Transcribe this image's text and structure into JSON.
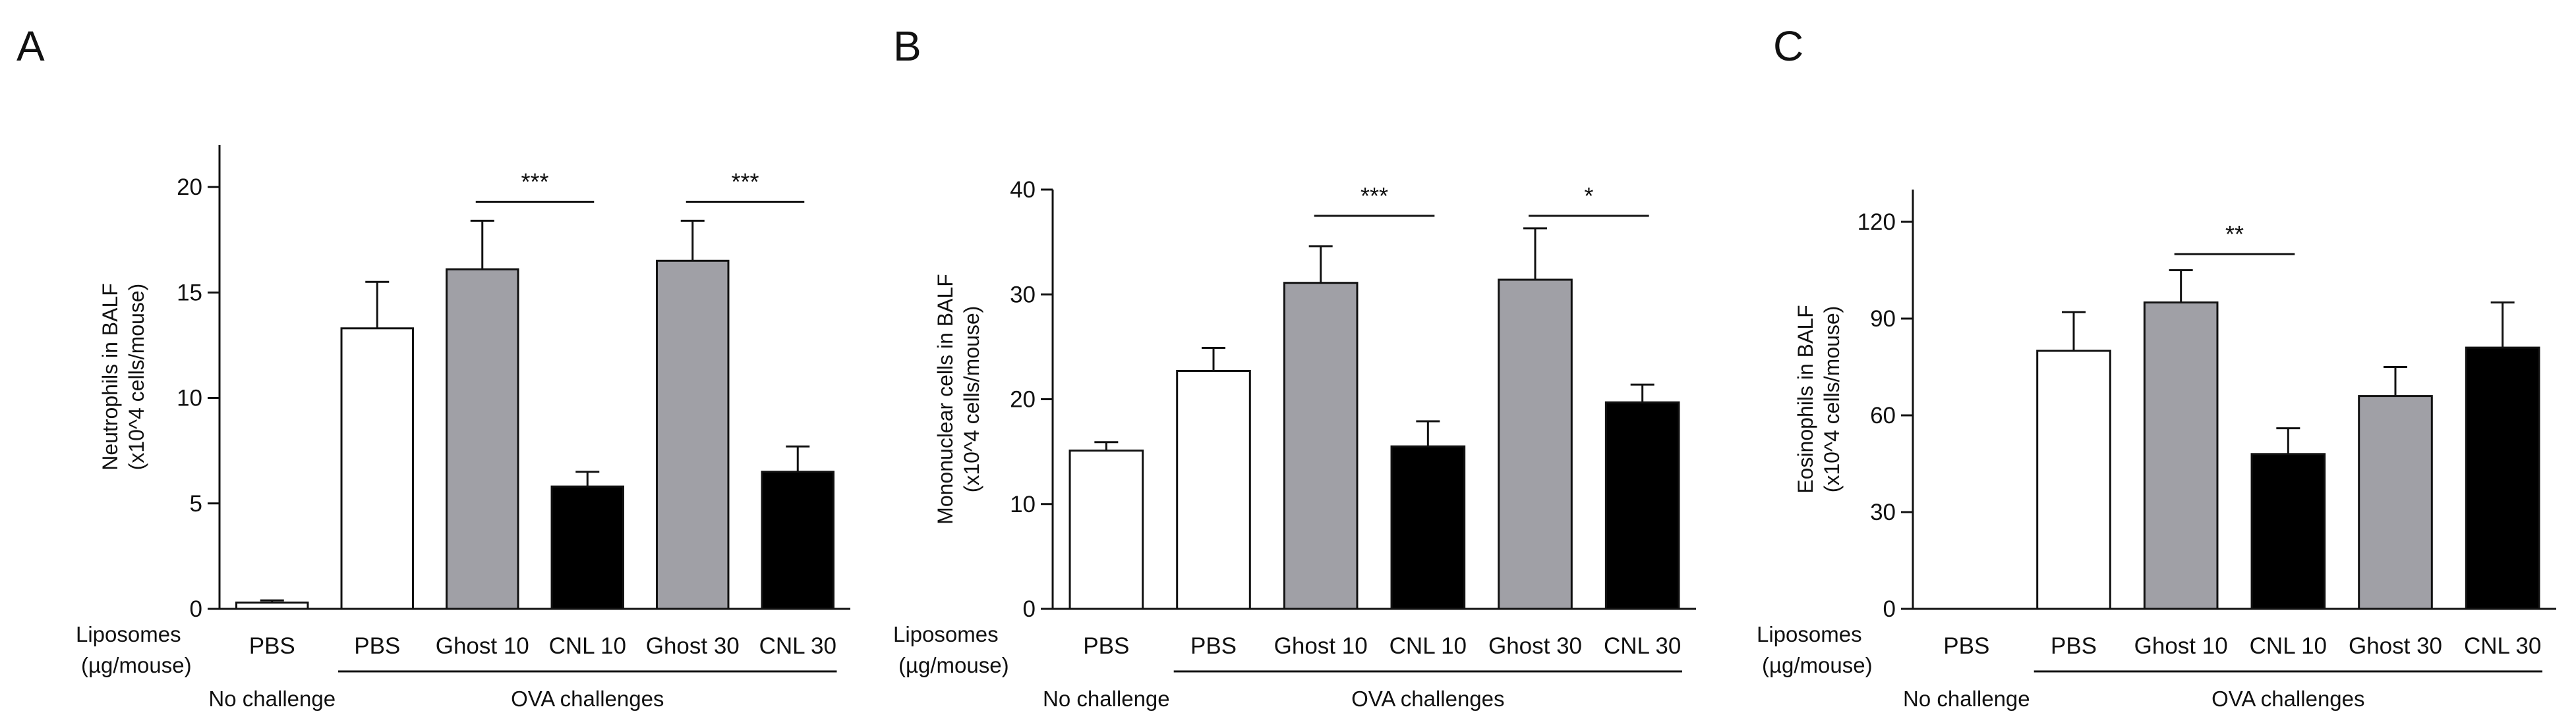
{
  "colors": {
    "white": "#ffffff",
    "gray": "#a0a0a6",
    "black": "#000000",
    "axis": "#111111"
  },
  "chart_data": [
    {
      "type": "bar",
      "panel": "A",
      "ylabel": [
        "Neutrophils in BALF",
        "(x10^4 cells/mouse)"
      ],
      "ylim": [
        0,
        22
      ],
      "yticks": [
        0,
        5,
        10,
        15,
        20
      ],
      "row_label": [
        "Liposomes",
        "(µg/mouse)"
      ],
      "categories": [
        "PBS",
        "PBS",
        "Ghost 10",
        "CNL 10",
        "Ghost 30",
        "CNL 30"
      ],
      "values": [
        0.3,
        13.3,
        16.1,
        5.8,
        16.5,
        6.5
      ],
      "errors": [
        0.1,
        2.2,
        2.3,
        0.7,
        1.9,
        1.2
      ],
      "fills": [
        "white",
        "white",
        "gray",
        "black",
        "gray",
        "black"
      ],
      "groups": [
        {
          "label": "No challenge",
          "from": 0,
          "to": 0
        },
        {
          "label": "OVA challenges",
          "from": 1,
          "to": 5
        }
      ],
      "significance": [
        {
          "from": 2,
          "to": 3,
          "label": "***",
          "y": 19.3
        },
        {
          "from": 4,
          "to": 5,
          "label": "***",
          "y": 19.3
        }
      ]
    },
    {
      "type": "bar",
      "panel": "B",
      "ylabel": [
        "Mononuclear cells in BALF",
        "(x10^4 cells/mouse)"
      ],
      "ylim": [
        0,
        40
      ],
      "yticks": [
        0,
        10,
        20,
        30,
        40
      ],
      "row_label": [
        "Liposomes",
        "(µg/mouse)"
      ],
      "categories": [
        "PBS",
        "PBS",
        "Ghost 10",
        "CNL 10",
        "Ghost 30",
        "CNL 30"
      ],
      "values": [
        15.1,
        22.7,
        31.1,
        15.5,
        31.4,
        19.7
      ],
      "errors": [
        0.8,
        2.2,
        3.5,
        2.4,
        4.9,
        1.7
      ],
      "fills": [
        "white",
        "white",
        "gray",
        "black",
        "gray",
        "black"
      ],
      "groups": [
        {
          "label": "No challenge",
          "from": 0,
          "to": 0
        },
        {
          "label": "OVA challenges",
          "from": 1,
          "to": 5
        }
      ],
      "significance": [
        {
          "from": 2,
          "to": 3,
          "label": "***",
          "y": 37.5
        },
        {
          "from": 4,
          "to": 5,
          "label": "*",
          "y": 37.5
        }
      ]
    },
    {
      "type": "bar",
      "panel": "C",
      "ylabel": [
        "Eosinophils in BALF",
        "(x10^4 cells/mouse)"
      ],
      "ylim": [
        0,
        130
      ],
      "yticks": [
        0,
        30,
        60,
        90,
        120
      ],
      "row_label": [
        "Liposomes",
        "(µg/mouse)"
      ],
      "categories": [
        "PBS",
        "PBS",
        "Ghost 10",
        "CNL 10",
        "Ghost 30",
        "CNL 30"
      ],
      "values": [
        0,
        80,
        95,
        48,
        66,
        81
      ],
      "errors": [
        0,
        12,
        10,
        8,
        9,
        14
      ],
      "fills": [
        "white",
        "white",
        "gray",
        "black",
        "gray",
        "black"
      ],
      "groups": [
        {
          "label": "No challenge",
          "from": 0,
          "to": 0
        },
        {
          "label": "OVA challenges",
          "from": 1,
          "to": 5
        }
      ],
      "significance": [
        {
          "from": 2,
          "to": 3,
          "label": "**",
          "y": 110
        }
      ]
    }
  ]
}
